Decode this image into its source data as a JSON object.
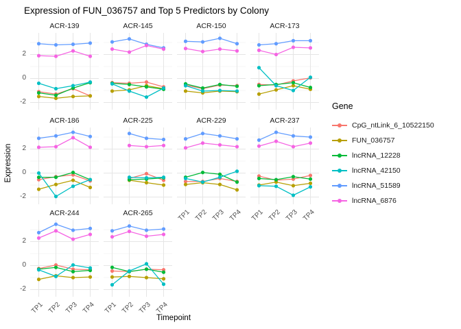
{
  "chart_data": {
    "type": "line",
    "title": "Expression of FUN_036757 and Top 5 Predictors by Colony",
    "xlabel": "Timepoint",
    "ylabel": "Expression",
    "x_categories": [
      "TP1",
      "TP2",
      "TP3",
      "TP4"
    ],
    "y_tick_values": [
      2,
      0,
      -2
    ],
    "y_tick_labels": [
      "2",
      "0",
      "-2"
    ],
    "y_minor_values": [
      3,
      1,
      -1
    ],
    "ylim": [
      -2.6,
      3.8
    ],
    "grid": true,
    "legend": {
      "title": "Gene",
      "position": "right"
    },
    "genes": [
      {
        "name": "CpG_ntLink_6_10522150",
        "color": "#F8766D"
      },
      {
        "name": "FUN_036757",
        "color": "#B79F00"
      },
      {
        "name": "lncRNA_12228",
        "color": "#00BA38"
      },
      {
        "name": "lncRNA_42150",
        "color": "#00BFC4"
      },
      {
        "name": "lncRNA_51589",
        "color": "#619CFF"
      },
      {
        "name": "lncRNA_6876",
        "color": "#F564E3"
      }
    ],
    "facets": [
      {
        "label": "ACR-139",
        "values": {
          "CpG_ntLink_6_10522150": [
            -1.1,
            -1.3,
            -0.85,
            -1.45
          ],
          "FUN_036757": [
            -1.5,
            -1.65,
            -1.5,
            -1.45
          ],
          "lncRNA_12228": [
            -1.2,
            -1.4,
            -0.8,
            -0.35
          ],
          "lncRNA_42150": [
            -0.4,
            -0.85,
            -0.6,
            -0.3
          ],
          "lncRNA_51589": [
            2.9,
            2.8,
            2.85,
            2.95
          ],
          "lncRNA_6876": [
            1.9,
            1.85,
            2.3,
            1.85
          ]
        }
      },
      {
        "label": "ACR-145",
        "values": {
          "CpG_ntLink_6_10522150": [
            -0.35,
            -0.4,
            -0.3,
            -0.7
          ],
          "FUN_036757": [
            -1.05,
            -0.95,
            -0.6,
            -0.85
          ],
          "lncRNA_12228": [
            -0.4,
            -0.5,
            -0.7,
            -0.9
          ],
          "lncRNA_42150": [
            -0.45,
            -1.05,
            -1.55,
            -0.8
          ],
          "lncRNA_51589": [
            3.05,
            3.3,
            2.85,
            2.55
          ],
          "lncRNA_6876": [
            2.45,
            2.2,
            2.75,
            2.45
          ]
        }
      },
      {
        "label": "ACR-150",
        "values": {
          "CpG_ntLink_6_10522150": [
            -0.55,
            -0.85,
            -0.55,
            -0.6
          ],
          "FUN_036757": [
            -1.05,
            -1.2,
            -1.05,
            -1.1
          ],
          "lncRNA_12228": [
            -0.45,
            -0.8,
            -0.5,
            -0.65
          ],
          "lncRNA_42150": [
            -0.6,
            -1.05,
            -1.0,
            -1.05
          ],
          "lncRNA_51589": [
            3.1,
            3.05,
            3.35,
            2.9
          ],
          "lncRNA_6876": [
            2.5,
            2.25,
            2.45,
            2.3
          ]
        }
      },
      {
        "label": "ACR-173",
        "values": {
          "CpG_ntLink_6_10522150": [
            -0.5,
            -0.55,
            -0.2,
            0.05
          ],
          "FUN_036757": [
            -1.3,
            -0.95,
            -0.6,
            -0.9
          ],
          "lncRNA_12228": [
            -0.6,
            -0.5,
            -0.35,
            -0.75
          ],
          "lncRNA_42150": [
            0.9,
            -0.6,
            -1.0,
            0.1
          ],
          "lncRNA_51589": [
            2.8,
            2.9,
            3.15,
            3.15
          ],
          "lncRNA_6876": [
            2.35,
            2.0,
            2.6,
            2.55
          ]
        }
      },
      {
        "label": "ACR-186",
        "values": {
          "CpG_ntLink_6_10522150": [
            -0.55,
            -0.3,
            -0.15,
            -0.65
          ],
          "FUN_036757": [
            -1.35,
            -0.95,
            -0.6,
            -1.2
          ],
          "lncRNA_12228": [
            -0.35,
            -0.35,
            0.05,
            -0.55
          ],
          "lncRNA_42150": [
            0.0,
            -1.95,
            -1.1,
            -0.55
          ],
          "lncRNA_51589": [
            2.9,
            3.1,
            3.4,
            3.05
          ],
          "lncRNA_6876": [
            2.15,
            2.2,
            2.95,
            2.15
          ]
        }
      },
      {
        "label": "ACR-225",
        "values": {
          "CpG_ntLink_6_10522150": [
            null,
            -0.45,
            -0.05,
            -0.6
          ],
          "FUN_036757": [
            null,
            -0.6,
            -0.8,
            -1.0
          ],
          "lncRNA_12228": [
            null,
            -0.55,
            -0.5,
            -0.4
          ],
          "lncRNA_42150": [
            null,
            -0.35,
            -0.4,
            -0.35
          ],
          "lncRNA_51589": [
            null,
            3.3,
            2.9,
            2.8
          ],
          "lncRNA_6876": [
            null,
            2.3,
            2.2,
            2.3
          ]
        }
      },
      {
        "label": "ACR-229",
        "values": {
          "CpG_ntLink_6_10522150": [
            -0.7,
            -0.7,
            -0.45,
            -0.7
          ],
          "FUN_036757": [
            -0.95,
            -0.8,
            -0.95,
            -1.4
          ],
          "lncRNA_12228": [
            -0.35,
            0.05,
            -0.1,
            -0.75
          ],
          "lncRNA_42150": [
            -0.45,
            -0.75,
            -0.35,
            0.15
          ],
          "lncRNA_51589": [
            2.85,
            3.3,
            3.1,
            2.85
          ],
          "lncRNA_6876": [
            2.1,
            2.5,
            2.35,
            2.2
          ]
        }
      },
      {
        "label": "ACR-237",
        "values": {
          "CpG_ntLink_6_10522150": [
            -0.25,
            -0.6,
            -0.5,
            -0.2
          ],
          "FUN_036757": [
            -1.0,
            -0.75,
            -1.05,
            -0.85
          ],
          "lncRNA_12228": [
            -0.45,
            -0.55,
            -0.3,
            -0.5
          ],
          "lncRNA_42150": [
            -1.05,
            -1.1,
            -1.85,
            -1.15
          ],
          "lncRNA_51589": [
            2.75,
            3.4,
            3.1,
            3.0
          ],
          "lncRNA_6876": [
            2.25,
            2.65,
            2.2,
            2.5
          ]
        }
      },
      {
        "label": "ACR-244",
        "values": {
          "CpG_ntLink_6_10522150": [
            -0.25,
            0.05,
            -0.3,
            -0.35
          ],
          "FUN_036757": [
            -1.15,
            -0.85,
            -1.0,
            -0.95
          ],
          "lncRNA_12228": [
            -0.3,
            -0.15,
            -0.5,
            -0.4
          ],
          "lncRNA_42150": [
            -0.35,
            -0.9,
            0.05,
            -0.2
          ],
          "lncRNA_51589": [
            2.75,
            3.45,
            2.95,
            3.1
          ],
          "lncRNA_6876": [
            2.3,
            2.9,
            2.2,
            2.6
          ]
        }
      },
      {
        "label": "ACR-265",
        "values": {
          "CpG_ntLink_6_10522150": [
            -0.45,
            -0.5,
            -0.3,
            -0.35
          ],
          "FUN_036757": [
            -0.95,
            -0.9,
            -1.0,
            -1.1
          ],
          "lncRNA_12228": [
            -0.15,
            -0.5,
            -0.3,
            -0.55
          ],
          "lncRNA_42150": [
            -1.6,
            -0.45,
            0.15,
            -1.55
          ],
          "lncRNA_51589": [
            2.9,
            3.3,
            2.95,
            3.05
          ],
          "lncRNA_6876": [
            2.4,
            2.85,
            2.45,
            2.6
          ]
        }
      }
    ]
  }
}
